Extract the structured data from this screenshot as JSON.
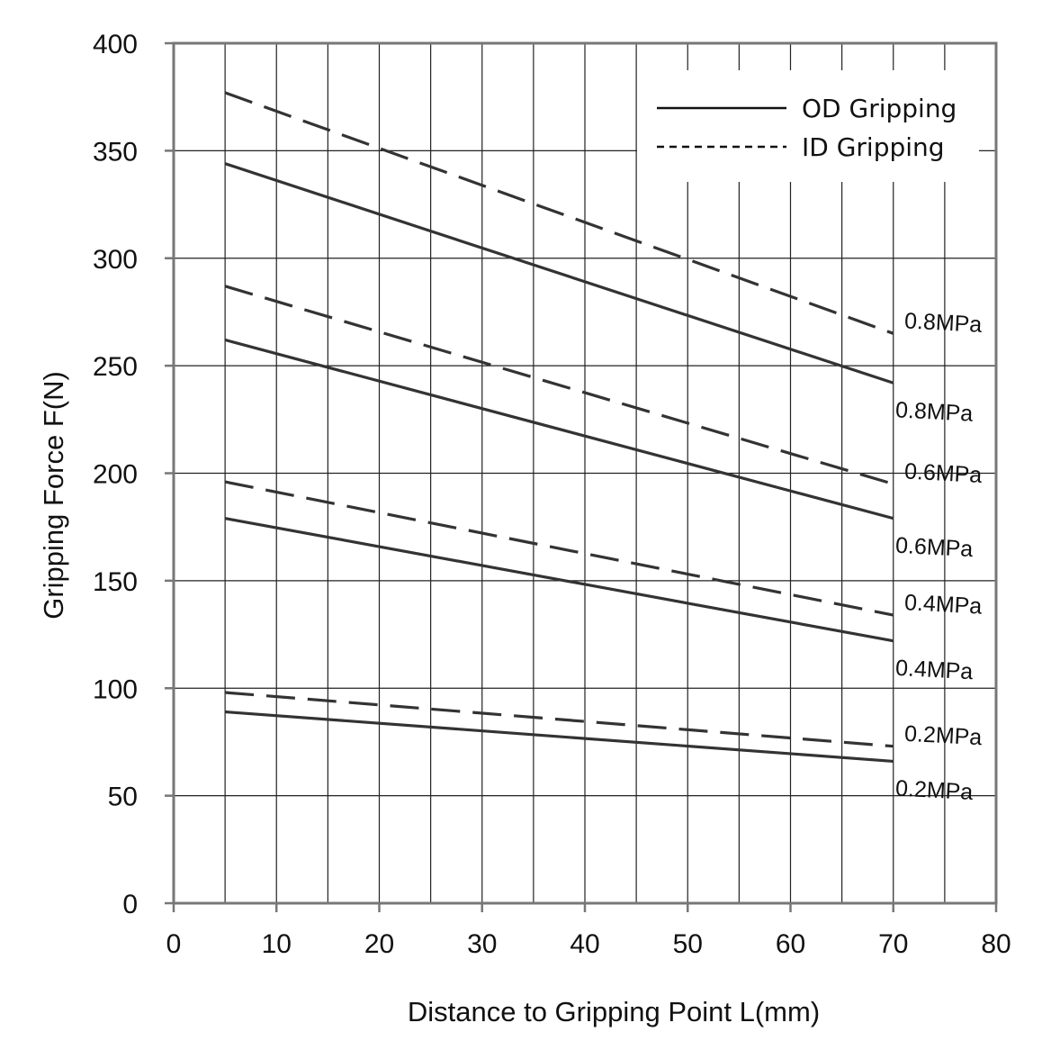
{
  "chart_data": {
    "type": "line",
    "title": "",
    "xlabel": "Distance to Gripping Point  L(mm)",
    "ylabel": "Gripping Force  F(N)",
    "xlim": [
      0,
      80
    ],
    "ylim": [
      0,
      400
    ],
    "x_ticks": [
      "0",
      "10",
      "20",
      "30",
      "40",
      "50",
      "60",
      "70",
      "80"
    ],
    "y_ticks": [
      "0",
      "50",
      "100",
      "150",
      "200",
      "250",
      "300",
      "350",
      "400"
    ],
    "x_minor_step": 5,
    "y_grid_step": 50,
    "grid": true,
    "legend": {
      "placement": "top-right",
      "entries": [
        {
          "label": "OD Gripping",
          "style": "solid"
        },
        {
          "label": "ID Gripping",
          "style": "dashed"
        }
      ]
    },
    "series": [
      {
        "group": "OD Gripping",
        "label": "0.8MPa",
        "style": "solid",
        "x": [
          5,
          70
        ],
        "y": [
          344,
          242
        ]
      },
      {
        "group": "OD Gripping",
        "label": "0.6MPa",
        "style": "solid",
        "x": [
          5,
          70
        ],
        "y": [
          262,
          179
        ]
      },
      {
        "group": "OD Gripping",
        "label": "0.4MPa",
        "style": "solid",
        "x": [
          5,
          70
        ],
        "y": [
          179,
          122
        ]
      },
      {
        "group": "OD Gripping",
        "label": "0.2MPa",
        "style": "solid",
        "x": [
          5,
          70
        ],
        "y": [
          89,
          66
        ]
      },
      {
        "group": "ID Gripping",
        "label": "0.8MPa",
        "style": "dashed",
        "x": [
          5,
          70
        ],
        "y": [
          377,
          265
        ]
      },
      {
        "group": "ID Gripping",
        "label": "0.6MPa",
        "style": "dashed",
        "x": [
          5,
          70
        ],
        "y": [
          287,
          195
        ]
      },
      {
        "group": "ID Gripping",
        "label": "0.4MPa",
        "style": "dashed",
        "x": [
          5,
          70
        ],
        "y": [
          196,
          134
        ]
      },
      {
        "group": "ID Gripping",
        "label": "0.2MPa",
        "style": "dashed",
        "x": [
          5,
          70
        ],
        "y": [
          98,
          73
        ]
      }
    ],
    "colors": {
      "line": "#333333",
      "grid": "#222222",
      "frame": "#777777"
    }
  }
}
